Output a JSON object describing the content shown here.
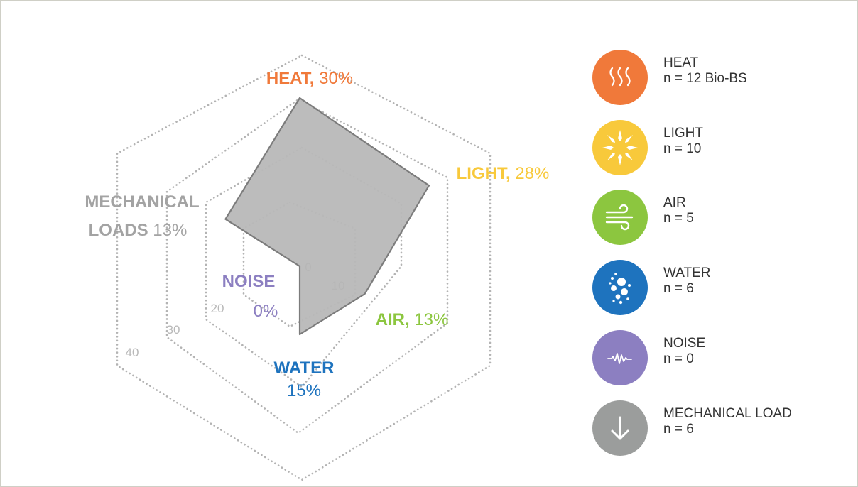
{
  "chart_data": {
    "type": "radar",
    "axes": [
      {
        "key": "heat",
        "name": "HEAT,",
        "value_label": "30%",
        "value": 30,
        "color": "#f0793a"
      },
      {
        "key": "light",
        "name": "LIGHT,",
        "value_label": "28%",
        "value": 28,
        "color": "#f8c93b"
      },
      {
        "key": "air",
        "name": "AIR,",
        "value_label": "13%",
        "value": 13,
        "color": "#8cc63f"
      },
      {
        "key": "water",
        "name": "WATER",
        "value_label": "15%",
        "value": 15,
        "color": "#1e73be"
      },
      {
        "key": "noise",
        "name": "NOISE",
        "value_label": "0%",
        "value": 0,
        "color": "#8c7fc1"
      },
      {
        "key": "mech",
        "name": "MECHANICAL LOADS",
        "name_line1": "MECHANICAL",
        "name_line2": "LOADS",
        "value_label": "13%",
        "value": 13,
        "color": "#a3a3a3"
      }
    ],
    "rings": [
      0,
      10,
      20,
      30,
      40
    ],
    "ring_labels": [
      "0",
      "10",
      "20",
      "30",
      "40"
    ],
    "range": [
      0,
      40
    ],
    "polygon_fill": "#b8b8b8",
    "polygon_stroke": "#7c7c7c",
    "grid_color": "#b3b3b3"
  },
  "legend": [
    {
      "icon": "heat-icon",
      "color": "#f0793a",
      "title": "HEAT",
      "count": "n = 12 Bio-BS"
    },
    {
      "icon": "light-icon",
      "color": "#f8c93b",
      "title": "LIGHT",
      "count": "n = 10"
    },
    {
      "icon": "air-icon",
      "color": "#8cc63f",
      "title": "AIR",
      "count": "n = 5"
    },
    {
      "icon": "water-icon",
      "color": "#1e73be",
      "title": "WATER",
      "count": "n = 6"
    },
    {
      "icon": "noise-icon",
      "color": "#8c7fc1",
      "title": "NOISE",
      "count": "n = 0"
    },
    {
      "icon": "mechanical-load-icon",
      "color": "#9b9d9c",
      "title": "MECHANICAL LOAD",
      "count": "n = 6"
    }
  ]
}
